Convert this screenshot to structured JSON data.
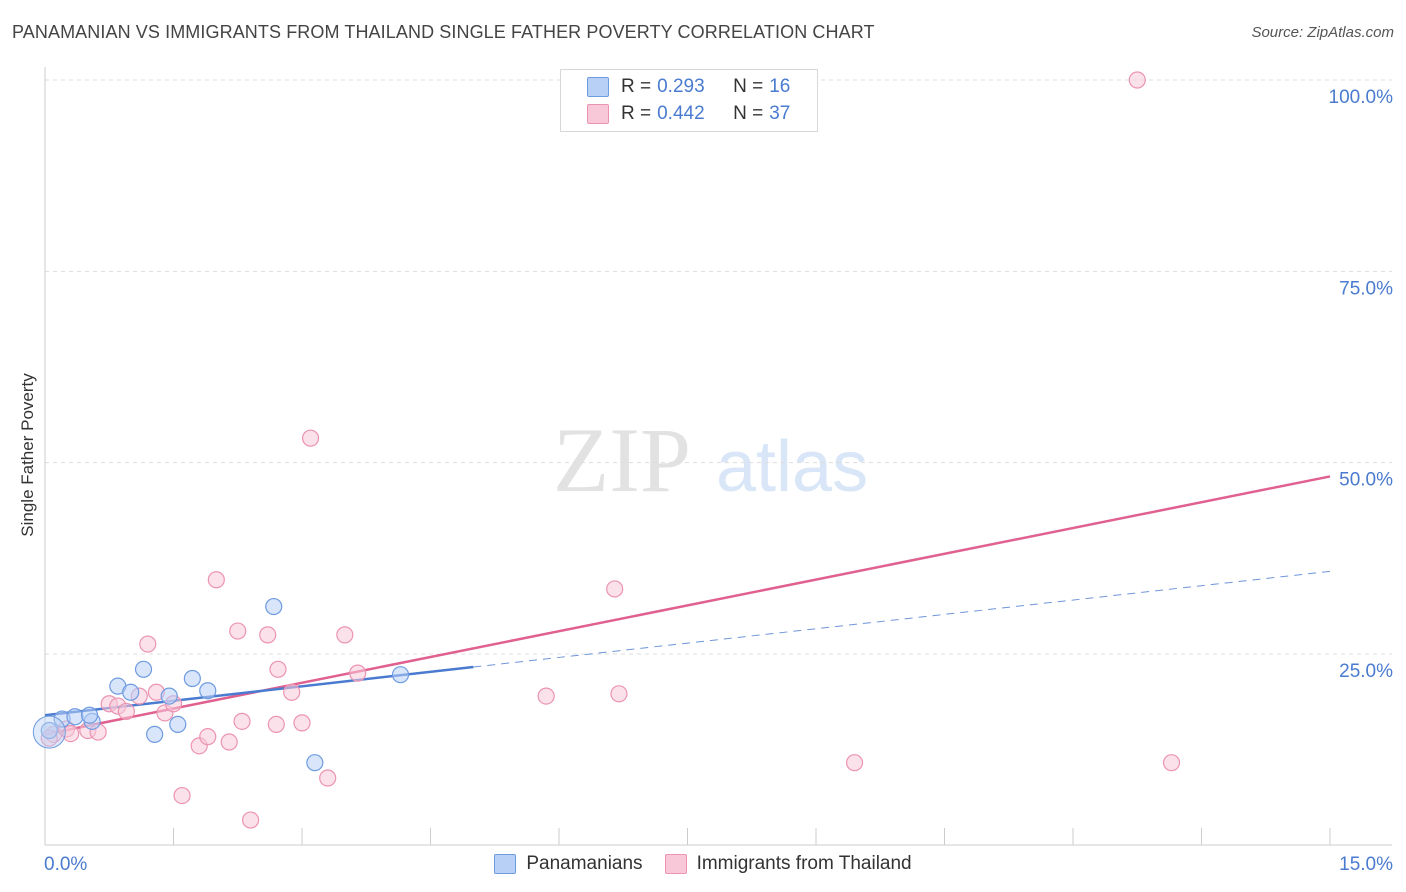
{
  "title": "PANAMANIAN VS IMMIGRANTS FROM THAILAND SINGLE FATHER POVERTY CORRELATION CHART",
  "source": "Source: ZipAtlas.com",
  "watermark": {
    "zip": "ZIP",
    "atlas": "atlas"
  },
  "colors": {
    "blue": "#4a7bd0",
    "blue_fill": "#b8d0f5",
    "blue_stroke": "#6f9be0",
    "pink": "#e0608f",
    "pink_fill": "#f8c8d8",
    "pink_stroke": "#ec93b2",
    "grid": "#dddddd"
  },
  "legend_top": [
    {
      "r_label": "R = ",
      "r_value": "0.293",
      "n_label": "N = ",
      "n_value": "16"
    },
    {
      "r_label": "R = ",
      "r_value": "0.442",
      "n_label": "N = ",
      "n_value": "37"
    }
  ],
  "chart_data": {
    "type": "scatter",
    "title": "PANAMANIAN VS IMMIGRANTS FROM THAILAND SINGLE FATHER POVERTY CORRELATION CHART",
    "xlabel": "",
    "ylabel": "Single Father Poverty",
    "xlim": [
      0,
      15
    ],
    "ylim": [
      0,
      102
    ],
    "x_tick_labels": [
      "0.0%",
      "15.0%"
    ],
    "y_ticks": [
      25,
      50,
      75,
      100
    ],
    "y_tick_labels": [
      "25.0%",
      "50.0%",
      "75.0%",
      "100.0%"
    ],
    "grid": true,
    "legend_position": "bottom",
    "series": [
      {
        "name": "Panamanians",
        "color": "#4a7bd0",
        "r": 0.293,
        "n": 16,
        "points": [
          [
            0.05,
            15.0
          ],
          [
            0.2,
            16.5
          ],
          [
            0.35,
            16.8
          ],
          [
            0.55,
            16.2
          ],
          [
            0.52,
            17.0
          ],
          [
            0.85,
            20.8
          ],
          [
            1.0,
            20.0
          ],
          [
            1.15,
            23.0
          ],
          [
            1.28,
            14.5
          ],
          [
            1.45,
            19.5
          ],
          [
            1.55,
            15.8
          ],
          [
            1.72,
            21.8
          ],
          [
            1.9,
            20.2
          ],
          [
            2.67,
            31.2
          ],
          [
            3.15,
            10.8
          ],
          [
            4.15,
            22.3
          ]
        ],
        "trend": {
          "x0": 0,
          "y0": 17.0,
          "x1": 5.0,
          "y1": 23.3
        },
        "trend_dashed": {
          "x0": 5.0,
          "y0": 23.3,
          "x1": 15.0,
          "y1": 35.8
        }
      },
      {
        "name": "Immigrants from Thailand",
        "color": "#e0608f",
        "r": 0.442,
        "n": 37,
        "points": [
          [
            0.1,
            14.5
          ],
          [
            0.25,
            15.2
          ],
          [
            0.3,
            14.6
          ],
          [
            0.5,
            15.0
          ],
          [
            0.62,
            14.8
          ],
          [
            0.75,
            18.5
          ],
          [
            0.85,
            18.2
          ],
          [
            0.95,
            17.5
          ],
          [
            1.1,
            19.5
          ],
          [
            1.2,
            26.3
          ],
          [
            1.3,
            20.0
          ],
          [
            1.4,
            17.3
          ],
          [
            1.5,
            18.5
          ],
          [
            1.6,
            6.5
          ],
          [
            1.8,
            13.0
          ],
          [
            1.9,
            14.2
          ],
          [
            2.0,
            34.7
          ],
          [
            2.15,
            13.5
          ],
          [
            2.25,
            28.0
          ],
          [
            2.3,
            16.2
          ],
          [
            2.4,
            3.3
          ],
          [
            2.6,
            27.5
          ],
          [
            2.7,
            15.8
          ],
          [
            2.72,
            23.0
          ],
          [
            2.88,
            20.0
          ],
          [
            3.0,
            16.0
          ],
          [
            3.1,
            53.2
          ],
          [
            3.3,
            8.8
          ],
          [
            3.5,
            27.5
          ],
          [
            3.65,
            22.5
          ],
          [
            5.85,
            19.5
          ],
          [
            6.65,
            33.5
          ],
          [
            6.7,
            19.8
          ],
          [
            9.45,
            10.8
          ],
          [
            12.75,
            100.0
          ],
          [
            13.15,
            10.8
          ],
          [
            0.05,
            14.0
          ]
        ],
        "trend": {
          "x0": 0,
          "y0": 14.5,
          "x1": 15.0,
          "y1": 48.2
        }
      }
    ]
  }
}
